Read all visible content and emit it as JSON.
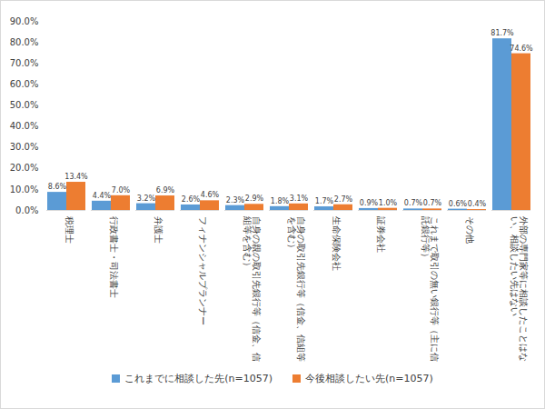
{
  "chart_data": {
    "type": "bar",
    "categories": [
      "税理士",
      "行政書士・司法書士",
      "弁護士",
      "フィナンシャルプランナー",
      "自身の親の取引先銀行等（信金、信組等を含む）",
      "自身の取引先銀行等（信金、信組等を含む）",
      "生命保険会社",
      "証券会社",
      "これまで取引の無い銀行等（主に信託銀行等）",
      "その他",
      "外部の専門家等に相談したことはない、相談したい先はない"
    ],
    "series": [
      {
        "name": "これまでに相談した先(n=1057)",
        "color": "#5b9bd5",
        "values": [
          8.6,
          4.4,
          3.2,
          2.6,
          2.3,
          1.8,
          1.7,
          0.9,
          0.7,
          0.6,
          81.7
        ],
        "value_labels": [
          "8.6%",
          "4.4%",
          "3.2%",
          "2.6%",
          "2.3%",
          "1.8%",
          "1.7%",
          "0.9%",
          "0.7%",
          "0.6%",
          "81.7%"
        ]
      },
      {
        "name": "今後相談したい先(n=1057)",
        "color": "#ed7d31",
        "values": [
          13.4,
          7.0,
          6.9,
          4.6,
          2.9,
          3.1,
          2.7,
          1.0,
          0.7,
          0.4,
          74.6
        ],
        "value_labels": [
          "13.4%",
          "7.0%",
          "6.9%",
          "4.6%",
          "2.9%",
          "3.1%",
          "2.7%",
          "1.0%",
          "0.7%",
          "0.4%",
          "74.6%"
        ]
      }
    ],
    "ylim": [
      0,
      90
    ],
    "yticks": [
      {
        "value": 0,
        "label": "0.0%"
      },
      {
        "value": 10,
        "label": "10.0%"
      },
      {
        "value": 20,
        "label": "20.0%"
      },
      {
        "value": 30,
        "label": "30.0%"
      },
      {
        "value": 40,
        "label": "40.0%"
      },
      {
        "value": 50,
        "label": "50.0%"
      },
      {
        "value": 60,
        "label": "60.0%"
      },
      {
        "value": 70,
        "label": "70.0%"
      },
      {
        "value": 80,
        "label": "80.0%"
      },
      {
        "value": 90,
        "label": "90.0%"
      }
    ],
    "grid": false,
    "data_labels": true,
    "legend": "bottom"
  }
}
